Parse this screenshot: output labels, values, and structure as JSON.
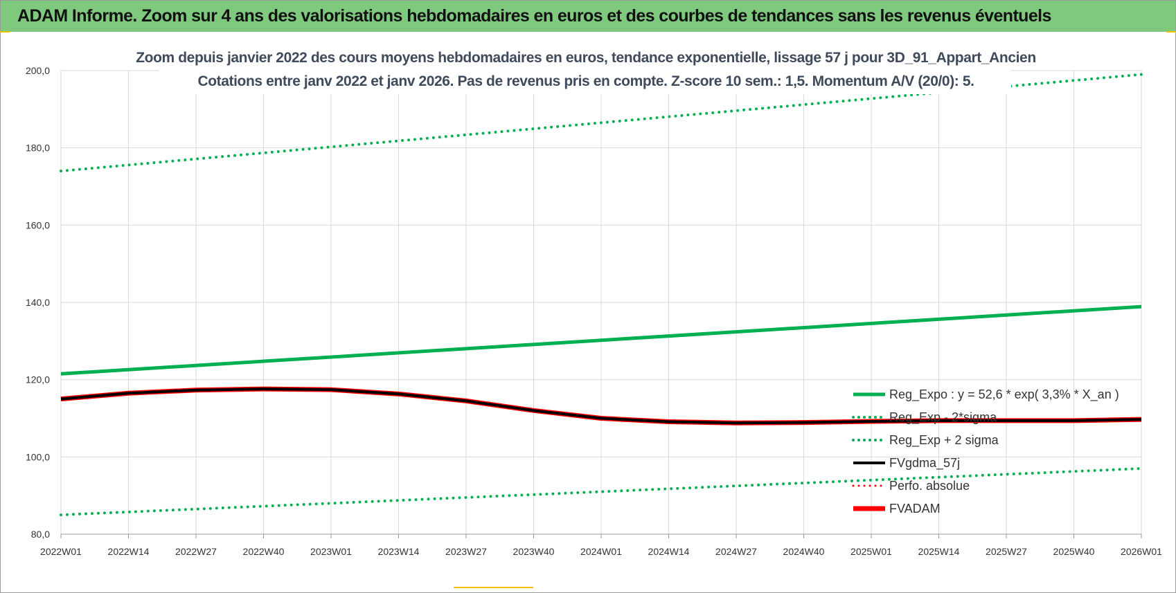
{
  "banner": {
    "title": "ADAM Informe. Zoom sur 4 ans des valorisations hebdomadaires en euros et des courbes de tendances sans les revenus éventuels"
  },
  "colors": {
    "banner_bg": "#7fc97f",
    "trend_green": "#00b050",
    "fvadam_red": "#ff0000",
    "fvgdma_black": "#000000",
    "grid": "#d9d9d9"
  },
  "chart_data": {
    "type": "line",
    "title_line1": "Zoom depuis janvier 2022 des cours moyens hebdomadaires en euros, tendance exponentielle, lissage 57 j pour 3D_91_Appart_Ancien",
    "title_line2": "Cotations entre janv 2022 et janv 2026. Pas de revenus pris en compte. Z-score 10 sem.: 1,5. Momentum A/V (20/0): 5.",
    "xlabel": "",
    "ylabel": "",
    "ylim": [
      80,
      200
    ],
    "y_ticks": [
      "80,0",
      "100,0",
      "120,0",
      "140,0",
      "160,0",
      "180,0",
      "200,0"
    ],
    "x_ticks": [
      "2022W01",
      "2022W14",
      "2022W27",
      "2022W40",
      "2023W01",
      "2023W14",
      "2023W27",
      "2023W40",
      "2024W01",
      "2024W14",
      "2024W27",
      "2024W40",
      "2025W01",
      "2025W14",
      "2025W27",
      "2025W40",
      "2026W01"
    ],
    "grid": true,
    "legend_position": "bottom-right",
    "series": [
      {
        "name": "Reg_Expo : y = 52,6 * exp( 3,3% *  X_an )",
        "style": "solid",
        "color": "#00b050",
        "x": [
          "2022W01",
          "2026W01"
        ],
        "values": [
          121.5,
          138.9
        ]
      },
      {
        "name": "Reg_Exp - 2*sigma",
        "style": "dotted",
        "color": "#00b050",
        "x": [
          "2022W01",
          "2026W01"
        ],
        "values": [
          85.0,
          97.0
        ]
      },
      {
        "name": "Reg_Exp + 2 sigma",
        "style": "dotted",
        "color": "#00b050",
        "x": [
          "2022W01",
          "2026W01"
        ],
        "values": [
          174.0,
          199.0
        ]
      },
      {
        "name": "FVgdma_57j",
        "style": "solid",
        "color": "#000000",
        "x": [
          "2022W01",
          "2022W14",
          "2022W27",
          "2022W40",
          "2023W01",
          "2023W14",
          "2023W27",
          "2023W40",
          "2024W01",
          "2024W14",
          "2024W27",
          "2024W40",
          "2025W01",
          "2025W14",
          "2025W27",
          "2025W40",
          "2026W01"
        ],
        "values": [
          115.0,
          116.5,
          117.3,
          117.6,
          117.4,
          116.3,
          114.5,
          112.0,
          110.0,
          109.1,
          108.8,
          108.9,
          109.2,
          109.4,
          109.4,
          109.4,
          109.7
        ]
      },
      {
        "name": "Perfo. absolue",
        "style": "dotted",
        "color": "#ff0000",
        "x": [],
        "values": []
      },
      {
        "name": "FVADAM",
        "style": "solid",
        "color": "#ff0000",
        "x": [
          "2022W01",
          "2022W14",
          "2022W27",
          "2022W40",
          "2023W01",
          "2023W14",
          "2023W27",
          "2023W40",
          "2024W01",
          "2024W14",
          "2024W27",
          "2024W40",
          "2025W01",
          "2025W14",
          "2025W27",
          "2025W40",
          "2026W01"
        ],
        "values": [
          115.0,
          116.5,
          117.3,
          117.6,
          117.4,
          116.3,
          114.5,
          112.0,
          110.0,
          109.1,
          108.8,
          108.9,
          109.2,
          109.4,
          109.4,
          109.4,
          109.7
        ]
      }
    ]
  }
}
